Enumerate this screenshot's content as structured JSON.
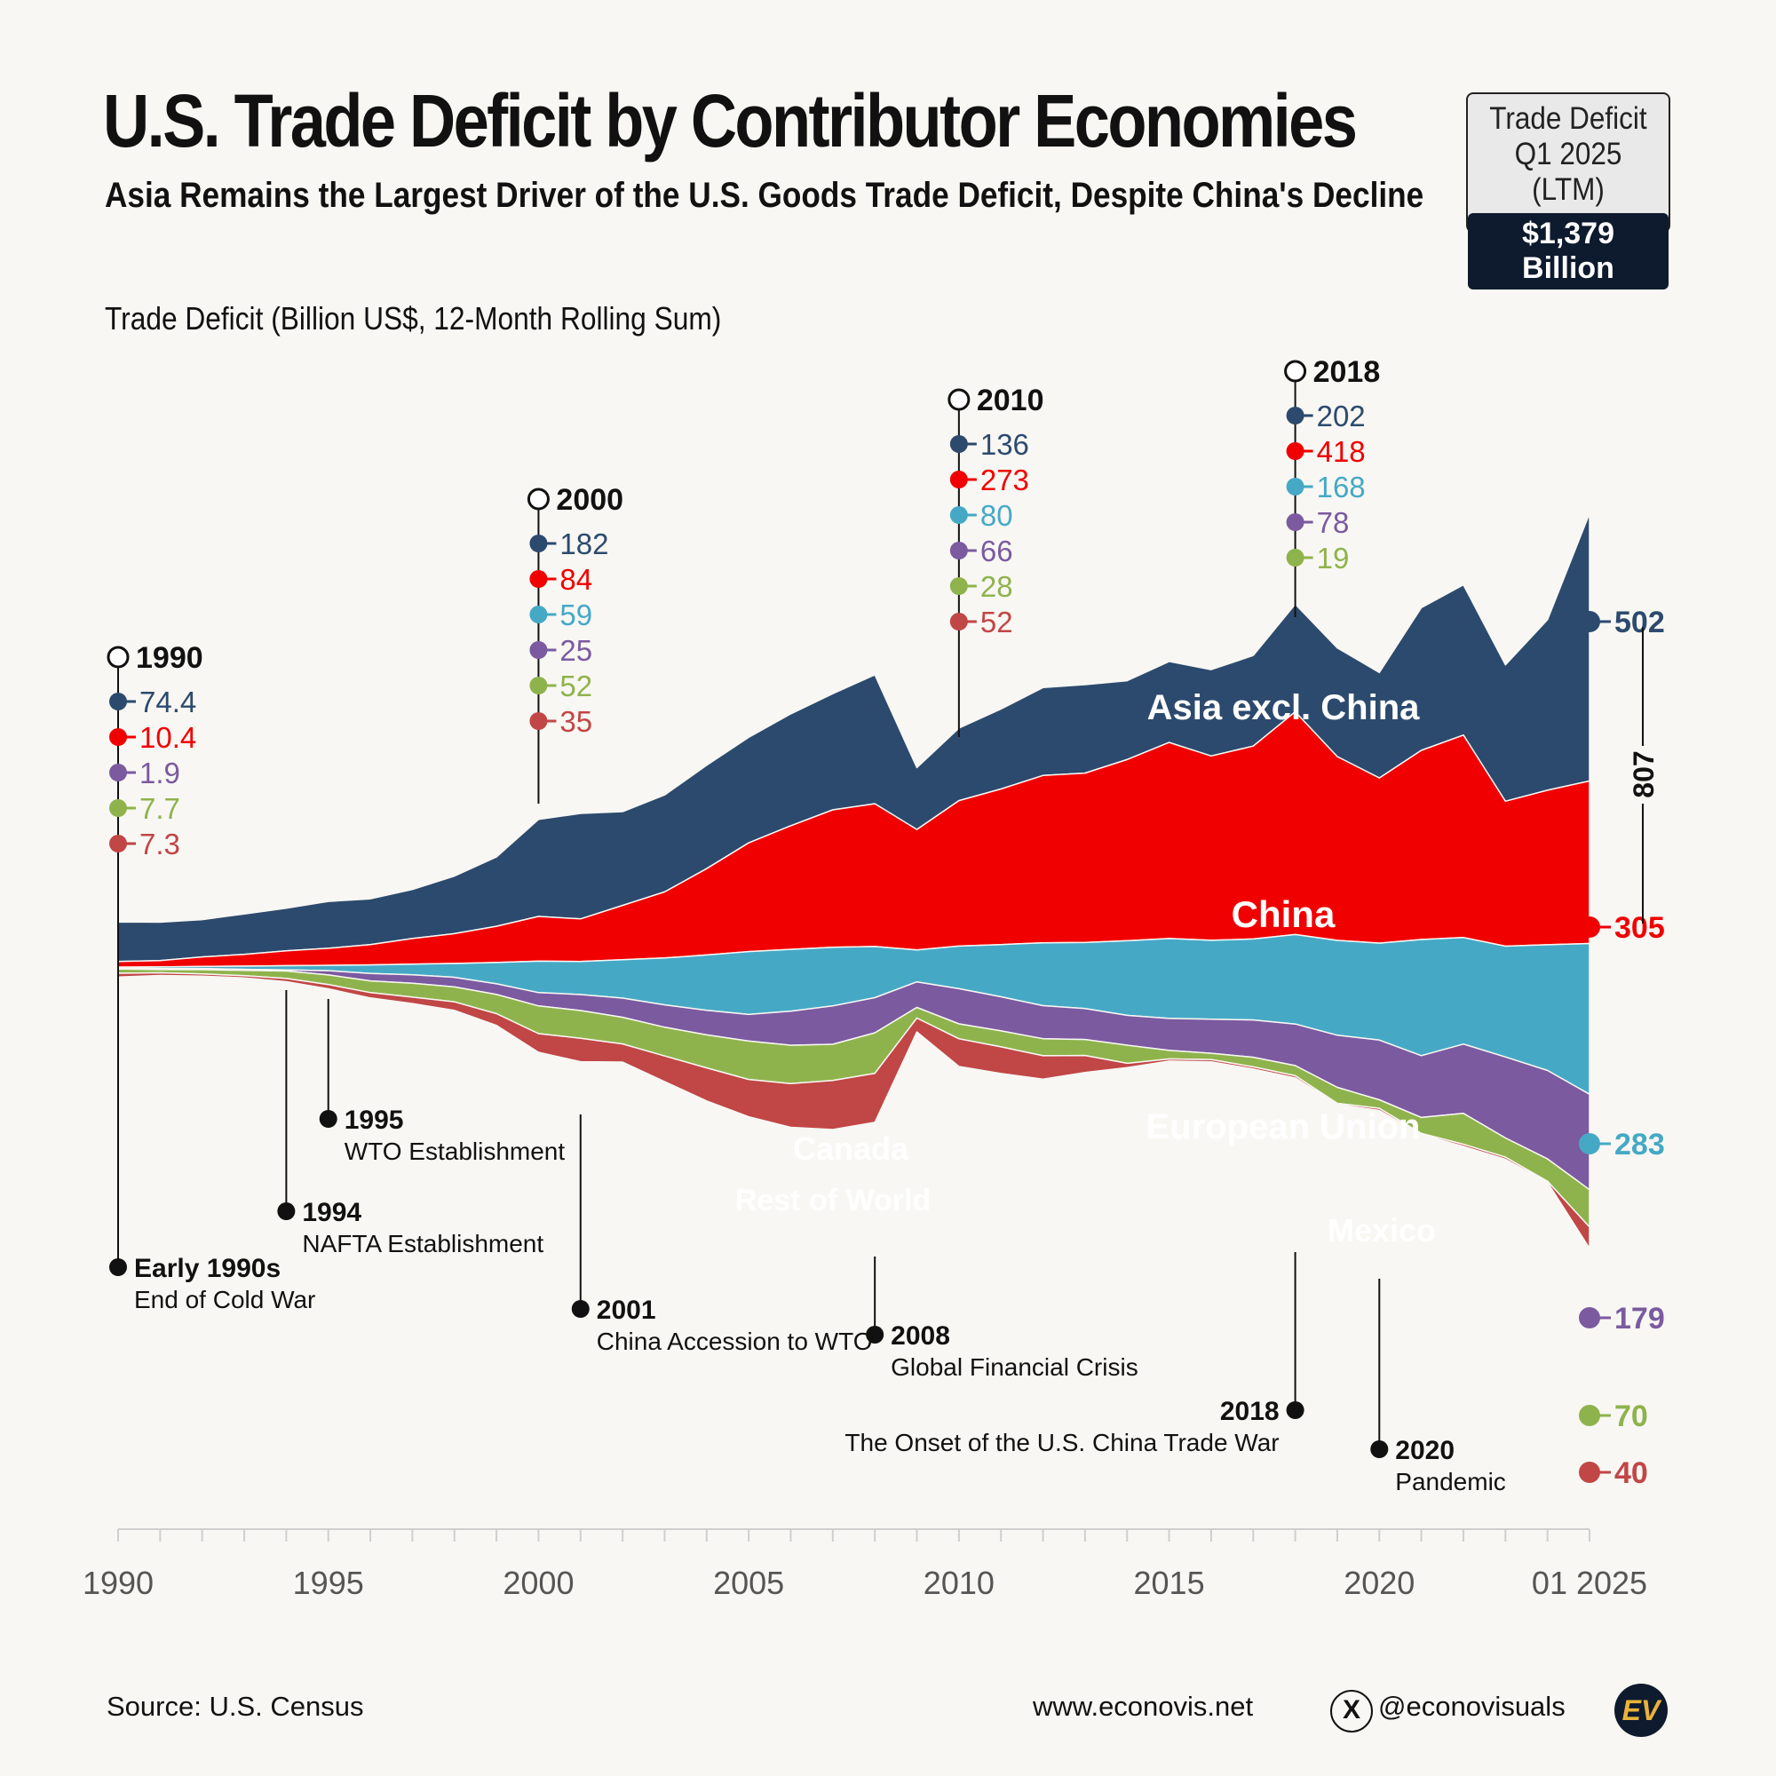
{
  "header": {
    "title": "U.S. Trade Deficit by Contributor Economies",
    "subtitle": "Asia Remains the Largest Driver of the U.S. Goods Trade Deficit, Despite China's Decline"
  },
  "summary_box": {
    "line1": "Trade Deficit",
    "line2": "Q1 2025 (LTM)",
    "value": "$1,379 Billion"
  },
  "footer": {
    "source": "Source: U.S. Census",
    "website": "www.econovis.net",
    "handle": "@econovisuals",
    "x_icon": "x-logo-icon",
    "logo_text": "EV"
  },
  "chart_data": {
    "type": "area",
    "ylabel": "Trade Deficit (Billion US$, 12-Month Rolling Sum)",
    "x_tick_labels": [
      "1990",
      "1995",
      "2000",
      "2005",
      "2010",
      "2015",
      "2020",
      "01 2025"
    ],
    "x_range": [
      1990,
      2025
    ],
    "grid": false,
    "legend": "inline labels",
    "x": [
      1990,
      1991,
      1992,
      1993,
      1994,
      1995,
      1996,
      1997,
      1998,
      1999,
      2000,
      2001,
      2002,
      2003,
      2004,
      2005,
      2006,
      2007,
      2008,
      2009,
      2010,
      2011,
      2012,
      2013,
      2014,
      2015,
      2016,
      2017,
      2018,
      2019,
      2020,
      2021,
      2022,
      2023,
      2024,
      2025
    ],
    "series": [
      {
        "name": "Asia excl. China",
        "color": "#2c4a6e",
        "values": [
          74.4,
          72,
          70,
          76,
          80,
          88,
          86,
          92,
          108,
          130,
          182,
          198,
          176,
          182,
          194,
          198,
          210,
          218,
          242,
          116,
          136,
          150,
          165,
          166,
          148,
          152,
          162,
          170,
          202,
          204,
          198,
          268,
          282,
          256,
          320,
          502
        ]
      },
      {
        "name": "China",
        "color": "#f00000",
        "values": [
          10.4,
          12,
          18,
          22,
          28,
          32,
          38,
          48,
          56,
          68,
          84,
          80,
          102,
          124,
          162,
          204,
          232,
          258,
          268,
          226,
          273,
          292,
          314,
          318,
          340,
          368,
          346,
          362,
          418,
          345,
          310,
          355,
          380,
          272,
          290,
          305
        ]
      },
      {
        "name": "European Union",
        "color": "#45a9c6",
        "values": [
          1.9,
          3,
          4,
          6,
          8,
          10,
          16,
          20,
          26,
          40,
          59,
          62,
          72,
          88,
          104,
          118,
          116,
          110,
          96,
          60,
          80,
          98,
          118,
          124,
          140,
          150,
          148,
          152,
          168,
          178,
          182,
          218,
          200,
          208,
          236,
          283
        ]
      },
      {
        "name": "Mexico",
        "color": "#7b5aa0",
        "values": [
          1.9,
          2,
          2,
          2,
          2,
          8,
          14,
          16,
          18,
          20,
          25,
          30,
          36,
          42,
          46,
          50,
          64,
          72,
          66,
          48,
          66,
          64,
          62,
          58,
          56,
          60,
          64,
          70,
          78,
          98,
          112,
          116,
          130,
          152,
          166,
          179
        ]
      },
      {
        "name": "Canada",
        "color": "#8fb34c",
        "values": [
          7.7,
          6,
          8,
          10,
          14,
          18,
          22,
          26,
          28,
          36,
          52,
          52,
          50,
          54,
          62,
          72,
          72,
          68,
          76,
          20,
          28,
          30,
          32,
          30,
          34,
          16,
          12,
          18,
          19,
          30,
          16,
          30,
          58,
          36,
          42,
          70
        ]
      },
      {
        "name": "Rest of World",
        "color": "#c14646",
        "values": [
          7.3,
          5,
          4,
          4,
          6,
          8,
          10,
          12,
          16,
          22,
          35,
          44,
          34,
          48,
          62,
          70,
          82,
          92,
          92,
          26,
          52,
          50,
          44,
          32,
          8,
          4,
          4,
          4,
          4,
          2,
          4,
          2,
          4,
          4,
          2,
          40
        ]
      }
    ],
    "inline_labels": [
      "Asia excl. China",
      "China",
      "European Union",
      "Mexico",
      "Canada",
      "Rest of World"
    ],
    "callouts": [
      {
        "year": "1990",
        "values": [
          "74.4",
          "10.4",
          "1.9",
          "7.7",
          "7.3"
        ],
        "colors": [
          "#2c4a6e",
          "#f00000",
          "#7b5aa0",
          "#8fb34c",
          "#c14646"
        ]
      },
      {
        "year": "2000",
        "values": [
          "182",
          "84",
          "59",
          "25",
          "52",
          "35"
        ],
        "colors": [
          "#2c4a6e",
          "#f00000",
          "#45a9c6",
          "#7b5aa0",
          "#8fb34c",
          "#c14646"
        ]
      },
      {
        "year": "2010",
        "values": [
          "136",
          "273",
          "80",
          "66",
          "28",
          "52"
        ],
        "colors": [
          "#2c4a6e",
          "#f00000",
          "#45a9c6",
          "#7b5aa0",
          "#8fb34c",
          "#c14646"
        ]
      },
      {
        "year": "2018",
        "values": [
          "202",
          "418",
          "168",
          "78",
          "19"
        ],
        "colors": [
          "#2c4a6e",
          "#f00000",
          "#45a9c6",
          "#7b5aa0",
          "#8fb34c"
        ]
      }
    ],
    "end_values": [
      "502",
      "305",
      "283",
      "179",
      "70",
      "40"
    ],
    "bracket_value": "807",
    "events": [
      {
        "year": "Early 1990s",
        "label": "End of Cold War"
      },
      {
        "year": "1994",
        "label": "NAFTA Establishment"
      },
      {
        "year": "1995",
        "label": "WTO Establishment"
      },
      {
        "year": "2001",
        "label": "China Accession to WTO"
      },
      {
        "year": "2008",
        "label": "Global Financial Crisis"
      },
      {
        "year": "2018",
        "label": "The Onset of the U.S. China Trade War"
      },
      {
        "year": "2020",
        "label": "Pandemic"
      }
    ]
  }
}
